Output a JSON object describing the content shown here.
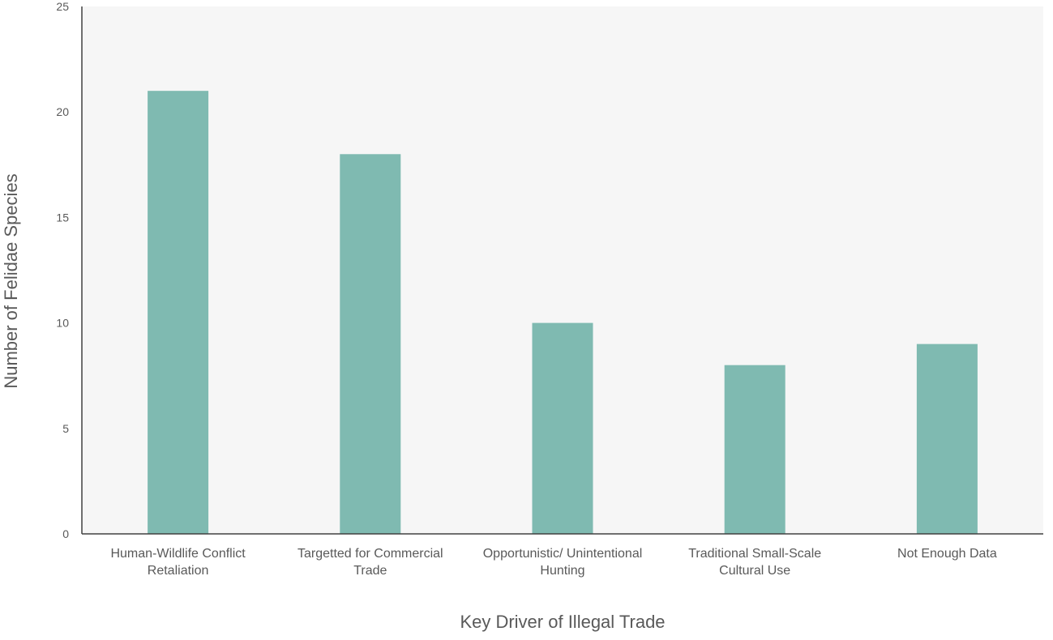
{
  "chart_data": {
    "type": "bar",
    "categories": [
      [
        "Human-Wildlife Conflict",
        "Retaliation"
      ],
      [
        "Targetted for Commercial",
        "Trade"
      ],
      [
        "Opportunistic/ Unintentional",
        "Hunting"
      ],
      [
        "Traditional Small-Scale",
        "Cultural Use"
      ],
      [
        "Not Enough Data"
      ]
    ],
    "values": [
      21,
      18,
      10,
      8,
      9
    ],
    "xlabel": "Key Driver of Illegal Trade",
    "ylabel": "Number of Felidae Species",
    "ylim": [
      0,
      25
    ],
    "yticks": [
      "0",
      "5",
      "10",
      "15",
      "20",
      "25"
    ],
    "grid": false,
    "colors": {
      "bar": "#7fbab1",
      "plot_background": "#f6f6f6",
      "axis": "#404040",
      "text": "#595959"
    }
  }
}
